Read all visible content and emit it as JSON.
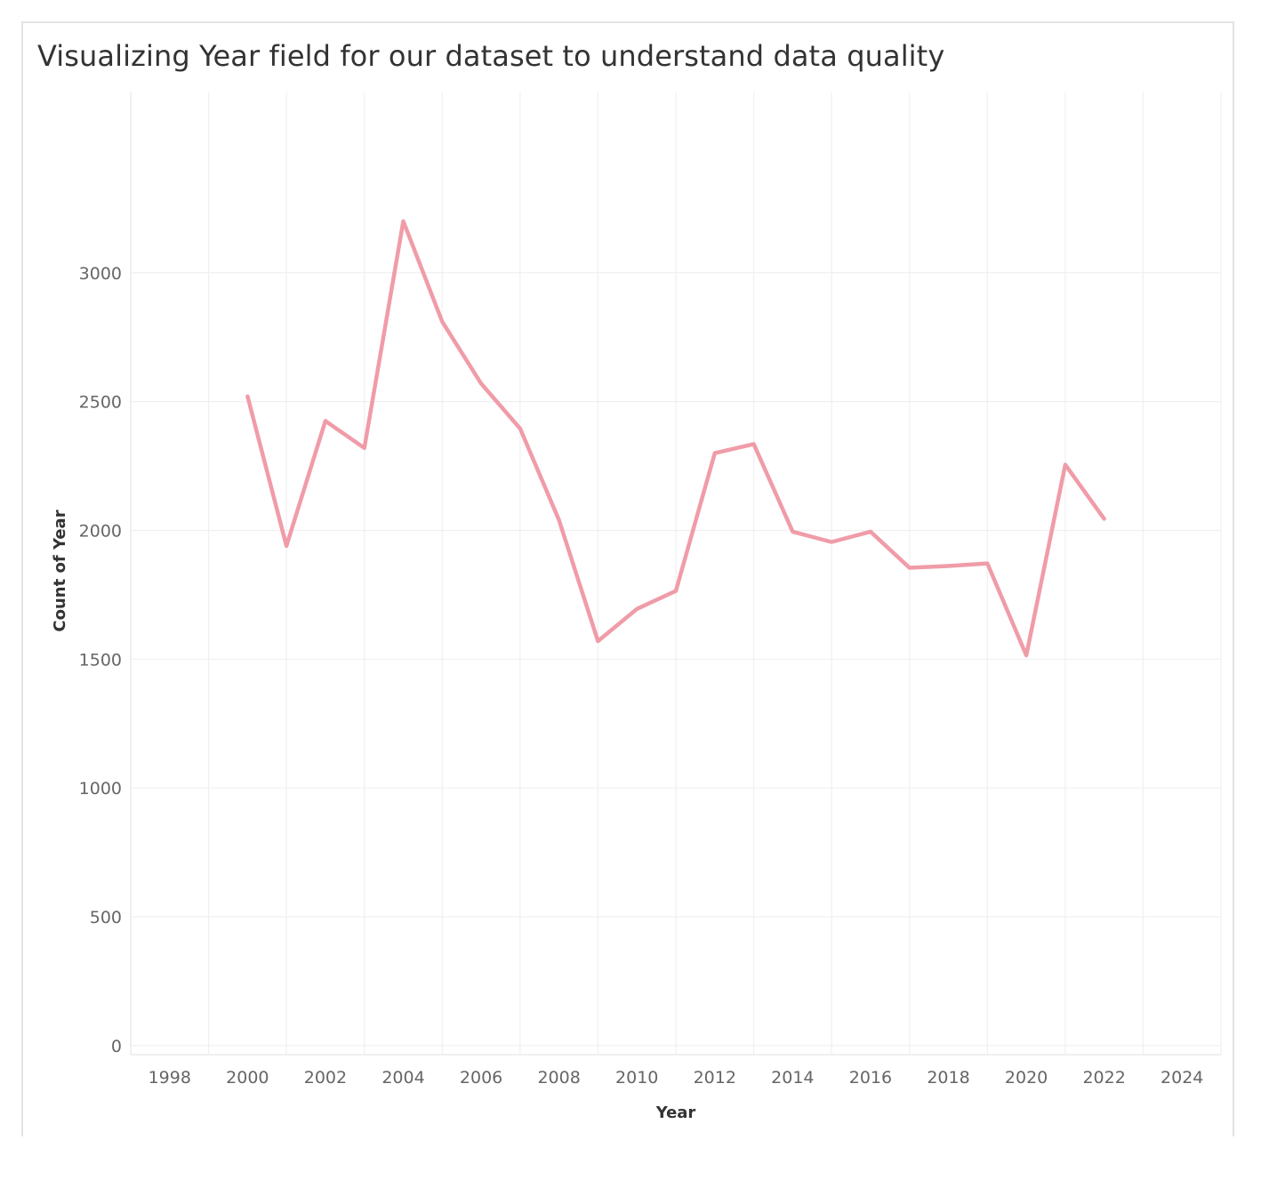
{
  "chart_data": {
    "type": "line",
    "title": "Visualizing Year field for our dataset to understand data quality",
    "xlabel": "Year",
    "ylabel": "Count of Year",
    "xlim": [
      1997,
      2025
    ],
    "ylim": [
      -35,
      3700
    ],
    "x_ticks": [
      1998,
      2000,
      2002,
      2004,
      2006,
      2008,
      2010,
      2012,
      2014,
      2016,
      2018,
      2020,
      2022,
      2024
    ],
    "y_ticks": [
      0,
      500,
      1000,
      1500,
      2000,
      2500,
      3000
    ],
    "grid": true,
    "line_color": "#f09ca8",
    "x": [
      2000,
      2001,
      2002,
      2003,
      2004,
      2005,
      2006,
      2007,
      2008,
      2009,
      2010,
      2011,
      2012,
      2013,
      2014,
      2015,
      2016,
      2017,
      2018,
      2019,
      2020,
      2021,
      2022
    ],
    "values": [
      2520,
      1940,
      2425,
      2320,
      3200,
      2810,
      2570,
      2395,
      2040,
      1570,
      1695,
      1765,
      2300,
      2335,
      1995,
      1955,
      1995,
      1855,
      1862,
      1872,
      1515,
      2255,
      2045
    ]
  }
}
